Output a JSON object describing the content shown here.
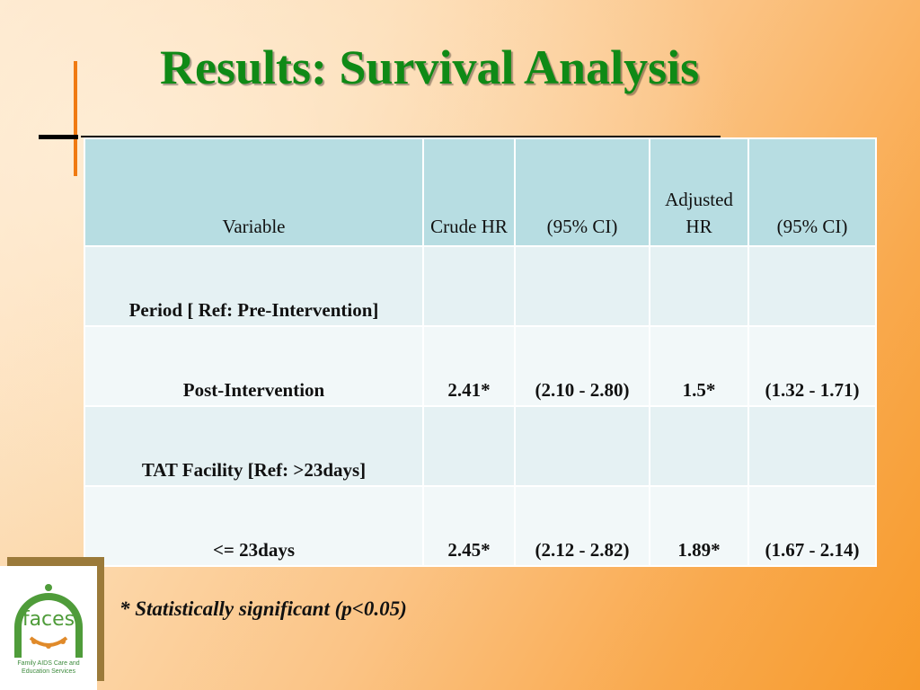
{
  "slide": {
    "title": "Results: Survival Analysis",
    "footnote": "* Statistically significant (p<0.05)"
  },
  "table": {
    "headers": [
      "Variable",
      "Crude HR",
      "(95% CI)",
      "Adjusted HR",
      "(95% CI)"
    ],
    "rows": [
      {
        "variable": "Period [ Ref: Pre-Intervention]",
        "crude_hr": "",
        "crude_ci": "",
        "adjusted_hr": "",
        "adjusted_ci": ""
      },
      {
        "variable": "Post-Intervention",
        "crude_hr": "2.41*",
        "crude_ci": "(2.10  -  2.80)",
        "adjusted_hr": "1.5*",
        "adjusted_ci": "(1.32 - 1.71)"
      },
      {
        "variable": "TAT Facility [Ref:  >23days]",
        "crude_hr": "",
        "crude_ci": "",
        "adjusted_hr": "",
        "adjusted_ci": ""
      },
      {
        "variable": "<= 23days",
        "crude_hr": "2.45*",
        "crude_ci": "(2.12 - 2.82)",
        "adjusted_hr": "1.89*",
        "adjusted_ci": "(1.67 - 2.14)"
      }
    ]
  },
  "logo": {
    "word": "faces",
    "caption_line1": "Family AIDS Care and",
    "caption_line2": "Education Services",
    "color": "#4f9c3a"
  },
  "colors": {
    "title": "#0f8a16",
    "header_fill": "#b7dde2",
    "row_fill_a": "#e5f1f3",
    "row_fill_b": "#f2f8f9",
    "accent_line": "#f07a12"
  }
}
